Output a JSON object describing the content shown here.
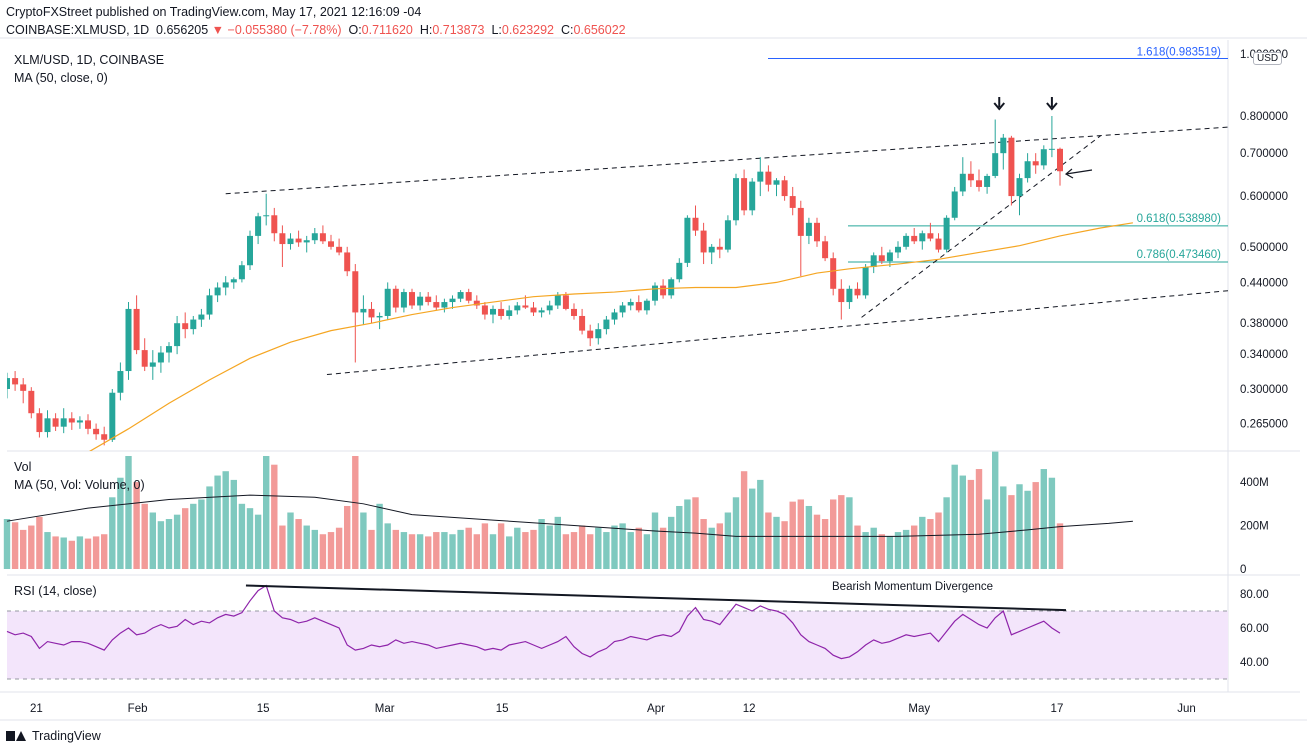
{
  "header": {
    "publisher": "CryptoFXStreet published on TradingView.com, May 17, 2021 12:16:09 -04",
    "symbol": "COINBASE:XLMUSD, 1D",
    "price": "0.656205",
    "change": "−0.055380 (−7.78%)",
    "o_label": "O:",
    "o_value": "0.711620",
    "h_label": "H:",
    "h_value": "0.713873",
    "l_label": "L:",
    "l_value": "0.623292",
    "c_label": "C:",
    "c_value": "0.656022"
  },
  "legend": {
    "main_title": "XLM/USD, 1D, COINBASE",
    "ma_label": "MA (50, close, 0)",
    "vol_title": "Vol",
    "vol_ma_label": "MA (50, Vol: Volume, 0)",
    "rsi_label": "RSI (14, close)",
    "currency": "USD"
  },
  "annotations": {
    "fib_1618": "1.618(0.983519)",
    "fib_0618": "0.618(0.538980)",
    "fib_0786": "0.786(0.473460)",
    "divergence": "Bearish Momentum Divergence"
  },
  "footer": {
    "brand": "TradingView"
  },
  "colors": {
    "up": "#26a69a",
    "down": "#ef5350",
    "up_vol": "#7fc9bf",
    "down_vol": "#f29a98",
    "ma": "#f5a623",
    "fib": "#26a69a",
    "fib_top": "#2962ff",
    "rsi": "#8e24aa",
    "rsi_band": "#f3e5fb",
    "grid": "#e0e3eb",
    "text": "#131722"
  },
  "chart_data": [
    {
      "type": "candlestick",
      "title": "XLM/USD, 1D, COINBASE",
      "scale": "log",
      "ylim": [
        0.235,
        1.0
      ],
      "y_ticks": [
        "1.000000",
        "0.800000",
        "0.700000",
        "0.600000",
        "0.500000",
        "0.440000",
        "0.380000",
        "0.340000",
        "0.300000",
        "0.265000"
      ],
      "x_ticks": [
        "21",
        "Feb",
        "15",
        "Mar",
        "15",
        "Apr",
        "12",
        "May",
        "17",
        "Jun"
      ],
      "candles_ohlc": [
        [
          0.3,
          0.318,
          0.29,
          0.312
        ],
        [
          0.312,
          0.32,
          0.298,
          0.305
        ],
        [
          0.305,
          0.312,
          0.285,
          0.298
        ],
        [
          0.298,
          0.302,
          0.27,
          0.275
        ],
        [
          0.275,
          0.28,
          0.252,
          0.257
        ],
        [
          0.257,
          0.278,
          0.252,
          0.27
        ],
        [
          0.27,
          0.275,
          0.258,
          0.262
        ],
        [
          0.262,
          0.28,
          0.256,
          0.27
        ],
        [
          0.27,
          0.276,
          0.259,
          0.266
        ],
        [
          0.266,
          0.272,
          0.26,
          0.268
        ],
        [
          0.268,
          0.274,
          0.255,
          0.26
        ],
        [
          0.26,
          0.265,
          0.25,
          0.255
        ],
        [
          0.255,
          0.262,
          0.245,
          0.25
        ],
        [
          0.25,
          0.3,
          0.248,
          0.296
        ],
        [
          0.296,
          0.33,
          0.288,
          0.32
        ],
        [
          0.32,
          0.41,
          0.31,
          0.4
        ],
        [
          0.4,
          0.42,
          0.34,
          0.345
        ],
        [
          0.345,
          0.36,
          0.32,
          0.325
        ],
        [
          0.325,
          0.345,
          0.31,
          0.33
        ],
        [
          0.33,
          0.35,
          0.318,
          0.342
        ],
        [
          0.342,
          0.355,
          0.33,
          0.35
        ],
        [
          0.35,
          0.39,
          0.34,
          0.38
        ],
        [
          0.38,
          0.395,
          0.36,
          0.372
        ],
        [
          0.372,
          0.39,
          0.365,
          0.385
        ],
        [
          0.385,
          0.4,
          0.375,
          0.392
        ],
        [
          0.392,
          0.43,
          0.385,
          0.42
        ],
        [
          0.42,
          0.44,
          0.41,
          0.432
        ],
        [
          0.432,
          0.45,
          0.42,
          0.44
        ],
        [
          0.44,
          0.448,
          0.43,
          0.445
        ],
        [
          0.445,
          0.475,
          0.44,
          0.468
        ],
        [
          0.468,
          0.53,
          0.46,
          0.52
        ],
        [
          0.52,
          0.565,
          0.505,
          0.558
        ],
        [
          0.558,
          0.605,
          0.54,
          0.56
        ],
        [
          0.56,
          0.575,
          0.51,
          0.525
        ],
        [
          0.525,
          0.54,
          0.465,
          0.505
        ],
        [
          0.505,
          0.525,
          0.495,
          0.515
        ],
        [
          0.515,
          0.53,
          0.5,
          0.508
        ],
        [
          0.508,
          0.52,
          0.49,
          0.512
        ],
        [
          0.512,
          0.535,
          0.505,
          0.525
        ],
        [
          0.525,
          0.54,
          0.505,
          0.51
        ],
        [
          0.51,
          0.522,
          0.495,
          0.5
        ],
        [
          0.5,
          0.515,
          0.485,
          0.49
        ],
        [
          0.49,
          0.5,
          0.45,
          0.458
        ],
        [
          0.458,
          0.47,
          0.33,
          0.395
        ],
        [
          0.395,
          0.42,
          0.378,
          0.4
        ],
        [
          0.4,
          0.41,
          0.38,
          0.388
        ],
        [
          0.388,
          0.395,
          0.372,
          0.39
        ],
        [
          0.39,
          0.44,
          0.385,
          0.43
        ],
        [
          0.43,
          0.435,
          0.395,
          0.402
        ],
        [
          0.402,
          0.43,
          0.395,
          0.425
        ],
        [
          0.425,
          0.43,
          0.4,
          0.405
        ],
        [
          0.405,
          0.425,
          0.398,
          0.418
        ],
        [
          0.418,
          0.425,
          0.405,
          0.41
        ],
        [
          0.41,
          0.42,
          0.398,
          0.402
        ],
        [
          0.402,
          0.415,
          0.395,
          0.41
        ],
        [
          0.41,
          0.42,
          0.4,
          0.415
        ],
        [
          0.415,
          0.428,
          0.41,
          0.425
        ],
        [
          0.425,
          0.43,
          0.408,
          0.412
        ],
        [
          0.412,
          0.42,
          0.4,
          0.405
        ],
        [
          0.405,
          0.41,
          0.385,
          0.392
        ],
        [
          0.392,
          0.405,
          0.38,
          0.4
        ],
        [
          0.4,
          0.41,
          0.385,
          0.39
        ],
        [
          0.39,
          0.405,
          0.385,
          0.398
        ],
        [
          0.398,
          0.41,
          0.392,
          0.405
        ],
        [
          0.405,
          0.42,
          0.4,
          0.402
        ],
        [
          0.402,
          0.41,
          0.39,
          0.395
        ],
        [
          0.395,
          0.402,
          0.388,
          0.398
        ],
        [
          0.398,
          0.412,
          0.392,
          0.405
        ],
        [
          0.405,
          0.425,
          0.4,
          0.42
        ],
        [
          0.42,
          0.425,
          0.398,
          0.4
        ],
        [
          0.4,
          0.408,
          0.385,
          0.39
        ],
        [
          0.39,
          0.4,
          0.365,
          0.37
        ],
        [
          0.37,
          0.378,
          0.35,
          0.36
        ],
        [
          0.36,
          0.38,
          0.352,
          0.372
        ],
        [
          0.372,
          0.39,
          0.365,
          0.385
        ],
        [
          0.385,
          0.4,
          0.378,
          0.395
        ],
        [
          0.395,
          0.41,
          0.388,
          0.405
        ],
        [
          0.405,
          0.415,
          0.398,
          0.41
        ],
        [
          0.41,
          0.42,
          0.395,
          0.398
        ],
        [
          0.398,
          0.415,
          0.392,
          0.412
        ],
        [
          0.412,
          0.44,
          0.405,
          0.435
        ],
        [
          0.435,
          0.445,
          0.415,
          0.42
        ],
        [
          0.42,
          0.448,
          0.415,
          0.445
        ],
        [
          0.445,
          0.48,
          0.44,
          0.472
        ],
        [
          0.472,
          0.56,
          0.465,
          0.555
        ],
        [
          0.555,
          0.58,
          0.52,
          0.53
        ],
        [
          0.53,
          0.545,
          0.47,
          0.49
        ],
        [
          0.49,
          0.505,
          0.47,
          0.5
        ],
        [
          0.5,
          0.515,
          0.48,
          0.495
        ],
        [
          0.495,
          0.56,
          0.49,
          0.55
        ],
        [
          0.55,
          0.65,
          0.54,
          0.64
        ],
        [
          0.64,
          0.66,
          0.56,
          0.57
        ],
        [
          0.57,
          0.64,
          0.56,
          0.632
        ],
        [
          0.632,
          0.69,
          0.6,
          0.655
        ],
        [
          0.655,
          0.67,
          0.61,
          0.625
        ],
        [
          0.625,
          0.64,
          0.6,
          0.635
        ],
        [
          0.635,
          0.645,
          0.59,
          0.6
        ],
        [
          0.6,
          0.62,
          0.56,
          0.575
        ],
        [
          0.575,
          0.59,
          0.45,
          0.52
        ],
        [
          0.52,
          0.555,
          0.505,
          0.545
        ],
        [
          0.545,
          0.555,
          0.5,
          0.51
        ],
        [
          0.51,
          0.52,
          0.475,
          0.48
        ],
        [
          0.48,
          0.49,
          0.42,
          0.43
        ],
        [
          0.43,
          0.445,
          0.385,
          0.41
        ],
        [
          0.41,
          0.435,
          0.4,
          0.43
        ],
        [
          0.43,
          0.44,
          0.415,
          0.42
        ],
        [
          0.42,
          0.47,
          0.415,
          0.465
        ],
        [
          0.465,
          0.49,
          0.455,
          0.485
        ],
        [
          0.485,
          0.5,
          0.47,
          0.475
        ],
        [
          0.475,
          0.495,
          0.465,
          0.49
        ],
        [
          0.49,
          0.51,
          0.48,
          0.5
        ],
        [
          0.5,
          0.525,
          0.495,
          0.52
        ],
        [
          0.52,
          0.535,
          0.505,
          0.51
        ],
        [
          0.51,
          0.53,
          0.495,
          0.525
        ],
        [
          0.525,
          0.545,
          0.51,
          0.515
        ],
        [
          0.515,
          0.525,
          0.49,
          0.495
        ],
        [
          0.495,
          0.56,
          0.49,
          0.555
        ],
        [
          0.555,
          0.62,
          0.55,
          0.61
        ],
        [
          0.61,
          0.69,
          0.6,
          0.65
        ],
        [
          0.65,
          0.68,
          0.62,
          0.635
        ],
        [
          0.635,
          0.66,
          0.61,
          0.62
        ],
        [
          0.62,
          0.65,
          0.605,
          0.645
        ],
        [
          0.645,
          0.79,
          0.64,
          0.7
        ],
        [
          0.7,
          0.75,
          0.66,
          0.74
        ],
        [
          0.74,
          0.745,
          0.58,
          0.6
        ],
        [
          0.6,
          0.65,
          0.56,
          0.64
        ],
        [
          0.64,
          0.7,
          0.63,
          0.68
        ],
        [
          0.68,
          0.7,
          0.65,
          0.67
        ],
        [
          0.67,
          0.72,
          0.66,
          0.71
        ],
        [
          0.71,
          0.8,
          0.69,
          0.711
        ],
        [
          0.711,
          0.714,
          0.623,
          0.656
        ]
      ],
      "volume_m": [
        230,
        215,
        180,
        200,
        240,
        170,
        150,
        145,
        130,
        150,
        140,
        150,
        160,
        330,
        420,
        520,
        400,
        300,
        260,
        220,
        230,
        250,
        280,
        300,
        320,
        380,
        430,
        450,
        410,
        300,
        280,
        250,
        520,
        480,
        200,
        260,
        230,
        200,
        180,
        160,
        170,
        190,
        290,
        520,
        260,
        180,
        300,
        210,
        180,
        170,
        160,
        160,
        150,
        170,
        170,
        160,
        180,
        190,
        160,
        210,
        160,
        210,
        150,
        190,
        170,
        180,
        230,
        200,
        240,
        160,
        170,
        200,
        160,
        190,
        170,
        200,
        210,
        170,
        190,
        160,
        260,
        190,
        240,
        290,
        320,
        330,
        230,
        190,
        210,
        260,
        330,
        450,
        370,
        410,
        260,
        240,
        220,
        310,
        320,
        290,
        250,
        230,
        320,
        340,
        330,
        200,
        170,
        190,
        160,
        150,
        170,
        180,
        200,
        240,
        230,
        260,
        330,
        480,
        430,
        410,
        460,
        320,
        540,
        380,
        340,
        390,
        360,
        400,
        460,
        420,
        210
      ],
      "ma_close": [
        [
          9,
          0.235
        ],
        [
          15,
          0.26
        ],
        [
          20,
          0.285
        ],
        [
          25,
          0.31
        ],
        [
          30,
          0.335
        ],
        [
          35,
          0.355
        ],
        [
          40,
          0.37
        ],
        [
          45,
          0.38
        ],
        [
          50,
          0.392
        ],
        [
          55,
          0.402
        ],
        [
          60,
          0.41
        ],
        [
          65,
          0.418
        ],
        [
          70,
          0.422
        ],
        [
          75,
          0.425
        ],
        [
          80,
          0.43
        ],
        [
          85,
          0.432
        ],
        [
          90,
          0.432
        ],
        [
          95,
          0.44
        ],
        [
          100,
          0.455
        ],
        [
          104,
          0.462
        ],
        [
          110,
          0.47
        ],
        [
          115,
          0.478
        ],
        [
          120,
          0.49
        ],
        [
          125,
          0.502
        ],
        [
          130,
          0.52
        ],
        [
          135,
          0.535
        ],
        [
          139,
          0.545
        ]
      ],
      "ma_volume_m": [
        [
          0,
          220
        ],
        [
          10,
          280
        ],
        [
          20,
          320
        ],
        [
          30,
          340
        ],
        [
          38,
          330
        ],
        [
          44,
          300
        ],
        [
          50,
          250
        ],
        [
          60,
          225
        ],
        [
          70,
          200
        ],
        [
          80,
          175
        ],
        [
          85,
          165
        ],
        [
          90,
          150
        ],
        [
          100,
          150
        ],
        [
          110,
          150
        ],
        [
          120,
          160
        ],
        [
          126,
          180
        ],
        [
          130,
          195
        ],
        [
          136,
          210
        ],
        [
          139,
          220
        ]
      ],
      "rsi": [
        58,
        56,
        57,
        55,
        48,
        52,
        51,
        50,
        52,
        52,
        51,
        49,
        47,
        53,
        57,
        60,
        56,
        57,
        60,
        62,
        60,
        61,
        65,
        62,
        64,
        63,
        66,
        68,
        67,
        69,
        76,
        82,
        85,
        70,
        66,
        65,
        63,
        64,
        66,
        64,
        62,
        60,
        50,
        47,
        48,
        50,
        49,
        50,
        53,
        51,
        52,
        51,
        50,
        48,
        49,
        50,
        51,
        50,
        49,
        47,
        48,
        47,
        50,
        51,
        52,
        50,
        48,
        50,
        52,
        55,
        49,
        45,
        43,
        46,
        48,
        52,
        53,
        55,
        54,
        53,
        55,
        56,
        55,
        58,
        67,
        72,
        65,
        64,
        62,
        68,
        74,
        72,
        70,
        73,
        71,
        70,
        68,
        63,
        56,
        52,
        50,
        48,
        44,
        42,
        43,
        46,
        50,
        53,
        51,
        52,
        54,
        56,
        55,
        56,
        57,
        52,
        58,
        64,
        68,
        65,
        62,
        60,
        66,
        70,
        56,
        58,
        60,
        62,
        64,
        60,
        57
      ],
      "rsi_ylim": [
        30,
        90
      ],
      "rsi_ticks": [
        "80.00",
        "60.00",
        "40.00"
      ],
      "vol_ticks": [
        "400M",
        "200M",
        "0"
      ]
    }
  ]
}
